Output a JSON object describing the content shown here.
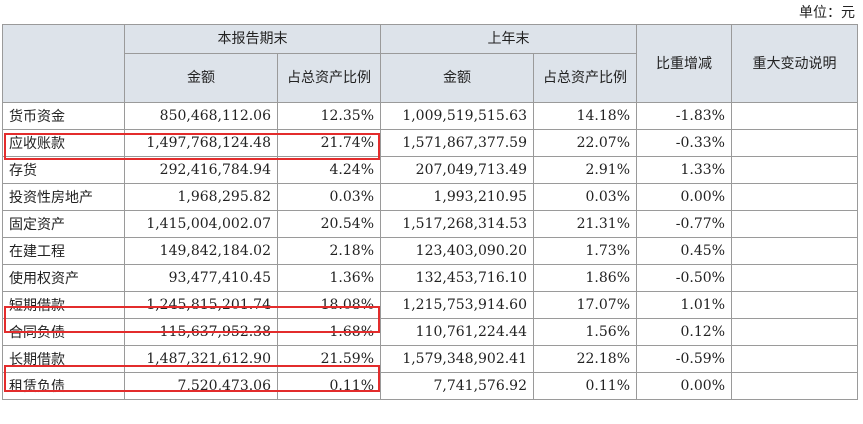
{
  "unit_label": "单位：元",
  "header": {
    "current_period": "本报告期末",
    "prior_year_end": "上年末",
    "amount": "金额",
    "ratio": "占总资产比例",
    "change": "比重增减",
    "explanation": "重大变动说明"
  },
  "rows": [
    {
      "item": "货币资金",
      "cur_amount": "850,468,112.06",
      "cur_ratio": "12.35%",
      "prev_amount": "1,009,519,515.63",
      "prev_ratio": "14.18%",
      "change": "-1.83%",
      "note": ""
    },
    {
      "item": "应收账款",
      "cur_amount": "1,497,768,124.48",
      "cur_ratio": "21.74%",
      "prev_amount": "1,571,867,377.59",
      "prev_ratio": "22.07%",
      "change": "-0.33%",
      "note": ""
    },
    {
      "item": "存货",
      "cur_amount": "292,416,784.94",
      "cur_ratio": "4.24%",
      "prev_amount": "207,049,713.49",
      "prev_ratio": "2.91%",
      "change": "1.33%",
      "note": ""
    },
    {
      "item": "投资性房地产",
      "cur_amount": "1,968,295.82",
      "cur_ratio": "0.03%",
      "prev_amount": "1,993,210.95",
      "prev_ratio": "0.03%",
      "change": "0.00%",
      "note": ""
    },
    {
      "item": "固定资产",
      "cur_amount": "1,415,004,002.07",
      "cur_ratio": "20.54%",
      "prev_amount": "1,517,268,314.53",
      "prev_ratio": "21.31%",
      "change": "-0.77%",
      "note": ""
    },
    {
      "item": "在建工程",
      "cur_amount": "149,842,184.02",
      "cur_ratio": "2.18%",
      "prev_amount": "123,403,090.20",
      "prev_ratio": "1.73%",
      "change": "0.45%",
      "note": ""
    },
    {
      "item": "使用权资产",
      "cur_amount": "93,477,410.45",
      "cur_ratio": "1.36%",
      "prev_amount": "132,453,716.10",
      "prev_ratio": "1.86%",
      "change": "-0.50%",
      "note": ""
    },
    {
      "item": "短期借款",
      "cur_amount": "1,245,815,201.74",
      "cur_ratio": "18.08%",
      "prev_amount": "1,215,753,914.60",
      "prev_ratio": "17.07%",
      "change": "1.01%",
      "note": ""
    },
    {
      "item": "合同负债",
      "cur_amount": "115,637,952.38",
      "cur_ratio": "1.68%",
      "prev_amount": "110,761,224.44",
      "prev_ratio": "1.56%",
      "change": "0.12%",
      "note": ""
    },
    {
      "item": "长期借款",
      "cur_amount": "1,487,321,612.90",
      "cur_ratio": "21.59%",
      "prev_amount": "1,579,348,902.41",
      "prev_ratio": "22.18%",
      "change": "-0.59%",
      "note": ""
    },
    {
      "item": "租赁负债",
      "cur_amount": "7,520,473.06",
      "cur_ratio": "0.11%",
      "prev_amount": "7,741,576.92",
      "prev_ratio": "0.11%",
      "change": "0.00%",
      "note": ""
    }
  ],
  "highlight_color": "#e32c2c",
  "header_bg": "#dde3ea"
}
